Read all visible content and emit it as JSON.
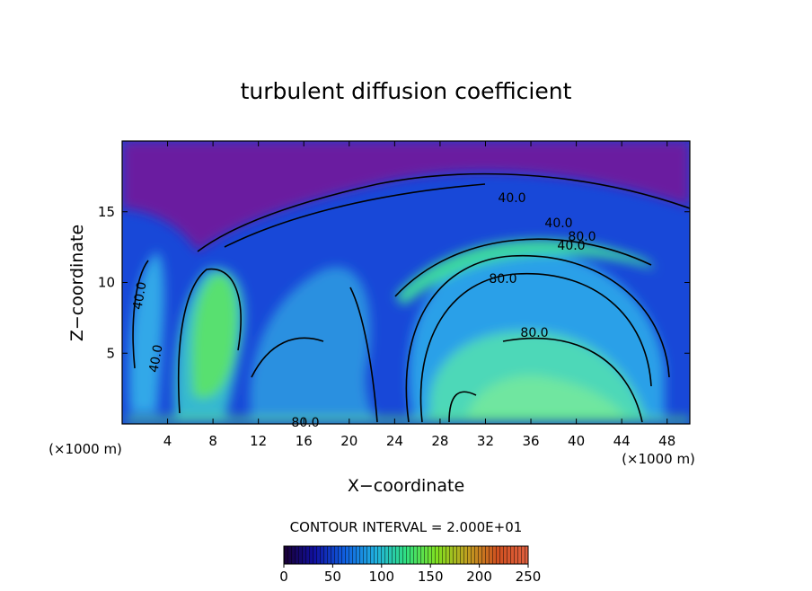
{
  "chart_data": {
    "type": "contour",
    "title": "turbulent diffusion coefficient",
    "xlabel": "X−coordinate",
    "ylabel": "Z−coordinate",
    "x_unit": "(×1000 m)",
    "x_unit_right": "(×1000 m)",
    "xlim": [
      0,
      50
    ],
    "ylim": [
      0,
      20
    ],
    "xticks": [
      4,
      8,
      12,
      16,
      20,
      24,
      28,
      32,
      36,
      40,
      44,
      48
    ],
    "yticks": [
      5,
      10,
      15
    ],
    "contour_labels": [
      "40.0",
      "40.0",
      "80.0",
      "40.0",
      "80.0",
      "80.0",
      "80.0",
      "40.0",
      "40.0"
    ],
    "annotation": "CONTOUR INTERVAL = 2.000E+01",
    "colorbar": {
      "lim": [
        0,
        250
      ],
      "ticks": [
        0,
        50,
        100,
        150,
        200,
        250
      ],
      "colors": [
        "#1a0033",
        "#1010a0",
        "#1060e0",
        "#20b0e0",
        "#30e080",
        "#80e020",
        "#c0a020",
        "#d05020",
        "#e06040"
      ]
    }
  }
}
